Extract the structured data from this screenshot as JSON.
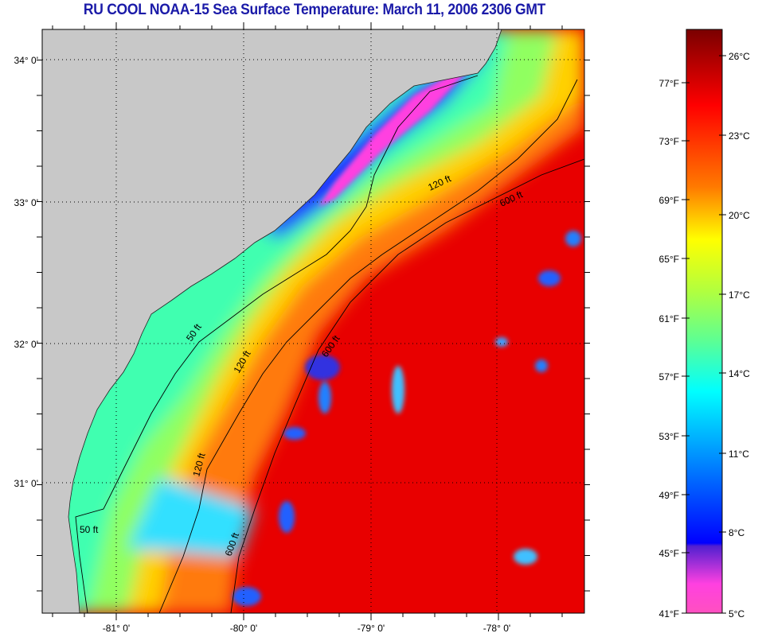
{
  "title": "RU COOL  NOAA-15  Sea Surface Temperature:  March 11, 2006 2306 GMT",
  "map": {
    "lat_labels": [
      "34° 0'",
      "33° 0'",
      "32° 0'",
      "31° 0'"
    ],
    "lon_labels": [
      "-81° 0'",
      "-80° 0'",
      "-79° 0'",
      "-78° 0'"
    ],
    "contour_labels": {
      "ft50": "50 ft",
      "ft120": "120 ft",
      "ft600": "600 ft"
    },
    "land_color": "#c8c8c8"
  },
  "colorbar": {
    "fahrenheit": [
      "77°F",
      "73°F",
      "69°F",
      "65°F",
      "61°F",
      "57°F",
      "53°F",
      "49°F",
      "45°F",
      "41°F"
    ],
    "celsius": [
      "26°C",
      "23°C",
      "20°C",
      "17°C",
      "14°C",
      "11°C",
      "8°C",
      "5°C"
    ],
    "range_celsius": [
      5,
      27.5
    ]
  }
}
